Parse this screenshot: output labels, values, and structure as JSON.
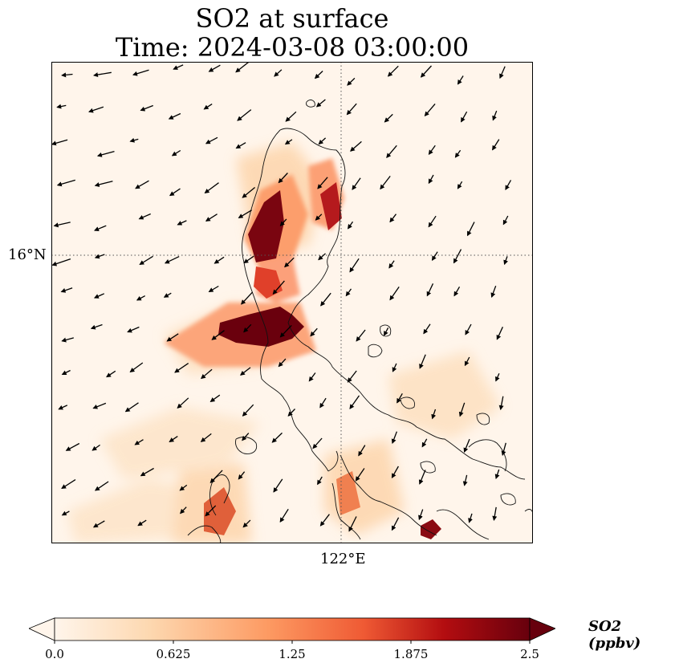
{
  "title": {
    "line1": "SO2 at surface",
    "line2": "Time: 2024-03-08 03:00:00"
  },
  "map": {
    "lat_label": "16°N",
    "lon_label": "122°E",
    "gridline_style": "dotted",
    "region": "Northern Philippines (Luzon)"
  },
  "colorbar": {
    "label": "SO2 (ppbv)",
    "ticks": [
      "0.0",
      "0.625",
      "1.25",
      "1.875",
      "2.5"
    ],
    "colors": [
      "#fff5eb",
      "#fdd0a2",
      "#fd8d3c",
      "#d94801",
      "#a50f15",
      "#67000d"
    ],
    "extend": "both"
  },
  "hotspots": [
    {
      "name": "north-coast-1",
      "level": 2.5
    },
    {
      "name": "north-coast-2",
      "level": 2.0
    },
    {
      "name": "central-plume",
      "level": 2.5
    },
    {
      "name": "east-small",
      "level": 1.6
    },
    {
      "name": "southwest-1",
      "level": 1.3
    },
    {
      "name": "south-central",
      "level": 1.2
    },
    {
      "name": "southeast-spot",
      "level": 2.5
    }
  ]
}
